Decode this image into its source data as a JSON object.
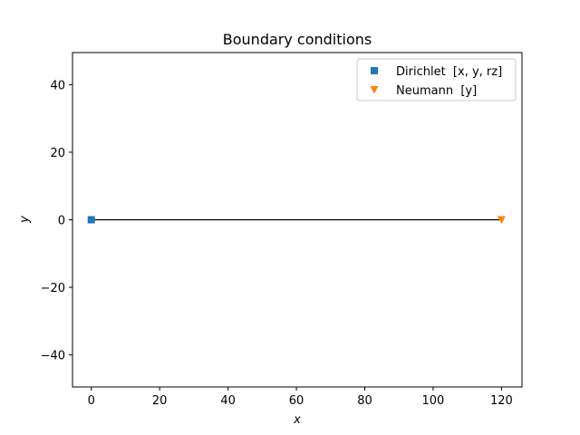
{
  "chart_data": {
    "type": "scatter",
    "title": "Boundary conditions",
    "xlabel": "x",
    "ylabel": "y",
    "xlim": [
      -5.5,
      126
    ],
    "ylim": [
      -49.5,
      49.5
    ],
    "xticks": [
      0,
      20,
      40,
      60,
      80,
      100,
      120
    ],
    "yticks": [
      -40,
      -20,
      0,
      20,
      40
    ],
    "grid": false,
    "legend_position": "top-right",
    "beam": {
      "x": [
        0,
        120
      ],
      "y": [
        0,
        0
      ],
      "color": "#000000"
    },
    "series": [
      {
        "name": "Dirichlet  [x, y, rz]",
        "marker": "square",
        "color": "#1f77b4",
        "points": [
          [
            0,
            0
          ]
        ]
      },
      {
        "name": "Neumann  [y]",
        "marker": "triangle-down",
        "color": "#ff7f0e",
        "points": [
          [
            120,
            0
          ]
        ]
      }
    ]
  }
}
